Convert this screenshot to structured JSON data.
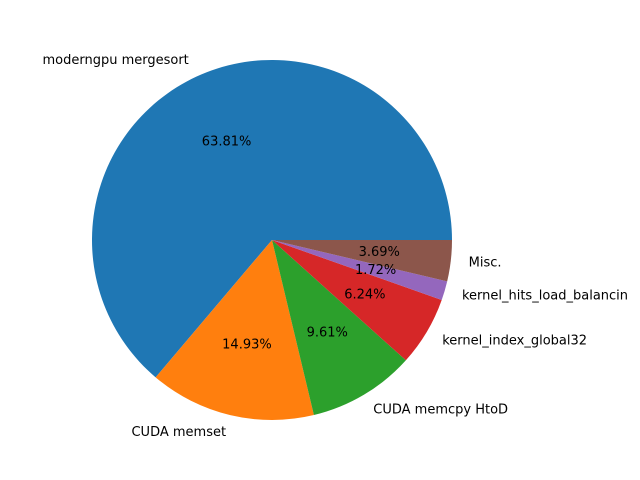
{
  "chart_data": {
    "type": "pie",
    "title": "",
    "start_angle_deg": 0,
    "direction": "counterclockwise",
    "slices": [
      {
        "label": "moderngpu mergesort",
        "value": 63.81,
        "pct_label": "63.81%",
        "color": "#1f77b4"
      },
      {
        "label": "CUDA memset",
        "value": 14.93,
        "pct_label": "14.93%",
        "color": "#ff7f0e"
      },
      {
        "label": "CUDA memcpy HtoD",
        "value": 9.61,
        "pct_label": "9.61%",
        "color": "#2ca02c"
      },
      {
        "label": "kernel_index_global32",
        "value": 6.24,
        "pct_label": "6.24%",
        "color": "#d62728"
      },
      {
        "label": "kernel_hits_load_balancin",
        "value": 1.72,
        "pct_label": "1.72%",
        "color": "#9467bd"
      },
      {
        "label": "Misc.",
        "value": 3.69,
        "pct_label": "3.69%",
        "color": "#8c564b"
      }
    ]
  }
}
